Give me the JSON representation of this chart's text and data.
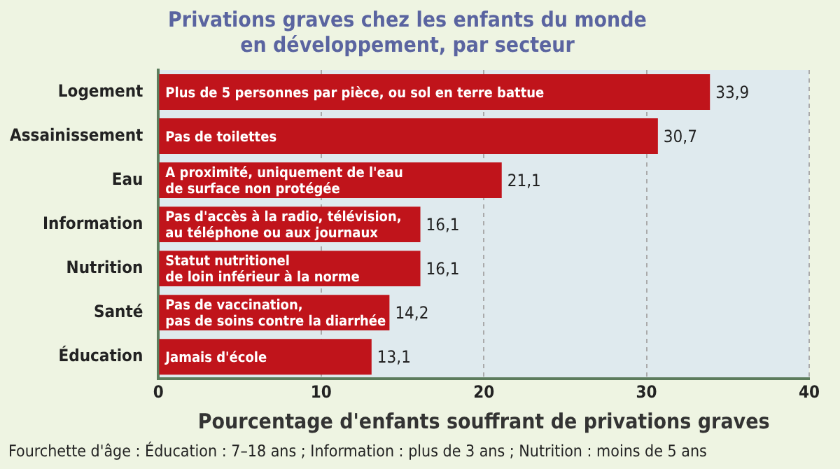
{
  "chart_data": {
    "type": "bar",
    "orientation": "horizontal",
    "title": "Privations graves chez les enfants du monde\nen développement, par secteur",
    "xlabel": "Pourcentage d'enfants souffrant de privations graves",
    "categories": [
      "Logement",
      "Assainissement",
      "Eau",
      "Information",
      "Nutrition",
      "Santé",
      "Éducation"
    ],
    "values": [
      33.9,
      30.7,
      21.1,
      16.1,
      16.1,
      14.2,
      13.1
    ],
    "value_labels": [
      "33,9",
      "30,7",
      "21,1",
      "16,1",
      "16,1",
      "14,2",
      "13,1"
    ],
    "color": "#c0141b",
    "xlim": [
      0,
      40
    ],
    "xticks": [
      0,
      10,
      20,
      30,
      40
    ],
    "grid": "x",
    "legend": false,
    "annotations": [
      {
        "text": "Plus de 5 personnes par pièce, ou sol en terre battue",
        "y": "Logement"
      },
      {
        "text": "Pas de toilettes",
        "y": "Assainissement"
      },
      {
        "text": "A proximité, uniquement de l'eau\nde surface non protégée",
        "y": "Eau"
      },
      {
        "text": "Pas d'accès à la radio, télévision,\nau téléphone ou aux journaux",
        "y": "Information"
      },
      {
        "text": "Statut nutritionel\nde loin inférieur à la norme",
        "y": "Nutrition"
      },
      {
        "text": "Pas de vaccination,\npas de soins contre la diarrhée",
        "y": "Santé"
      },
      {
        "text": "Jamais d'école",
        "y": "Éducation"
      },
      "Fourchette d'âge : Éducation : 7–18 ans ; Information : plus de 3 ans ; Nutrition : moins de 5 ans"
    ]
  }
}
